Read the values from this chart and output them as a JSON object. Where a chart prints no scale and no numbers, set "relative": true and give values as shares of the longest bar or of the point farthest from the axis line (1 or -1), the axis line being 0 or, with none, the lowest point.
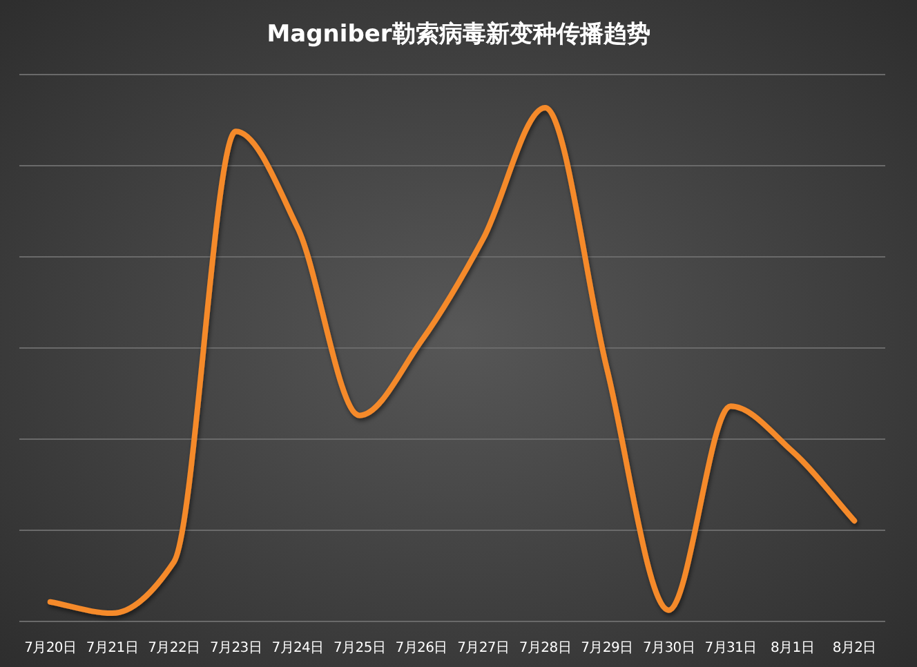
{
  "chart_data": {
    "type": "line",
    "title": "Magniber勒索病毒新变种传播趋势",
    "relative": true,
    "grid": "y",
    "marker": "none",
    "line_style": "solid",
    "categories": [
      "7月20日",
      "7月21日",
      "7月22日",
      "7月23日",
      "7月24日",
      "7月25日",
      "7月26日",
      "7月27日",
      "7月28日",
      "7月29日",
      "7月30日",
      "7月31日",
      "8月1日",
      "8月2日"
    ],
    "series": [
      {
        "color": "#f58a2c",
        "values": [
          0.038,
          0.016,
          0.116,
          0.954,
          0.766,
          0.401,
          0.546,
          0.745,
          1,
          0.492,
          0.022,
          0.419,
          0.331,
          0.196
        ]
      }
    ]
  }
}
